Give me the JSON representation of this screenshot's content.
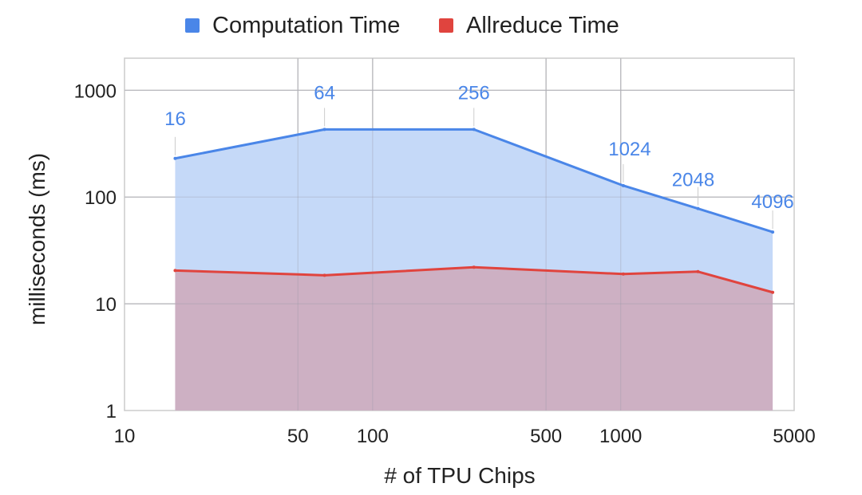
{
  "chart_data": {
    "type": "area",
    "xlabel": "# of TPU Chips",
    "ylabel": "milliseconds (ms)",
    "x_scale": "log",
    "y_scale": "log",
    "xlim": [
      10,
      5000
    ],
    "ylim": [
      1,
      2000
    ],
    "x_ticks": [
      10,
      50,
      100,
      500,
      1000,
      5000
    ],
    "x_tick_labels": [
      "10",
      "50",
      "100",
      "500",
      "1000",
      "5000"
    ],
    "y_ticks": [
      1,
      10,
      100,
      1000
    ],
    "y_tick_labels": [
      "1",
      "10",
      "100",
      "1000"
    ],
    "grid": true,
    "legend_position": "top",
    "x": [
      16,
      64,
      256,
      1024,
      2048,
      4096
    ],
    "point_labels": [
      "16",
      "64",
      "256",
      "1024",
      "2048",
      "4096"
    ],
    "series": [
      {
        "name": "Computation Time",
        "color": "#4a86e8",
        "fill": "#c5d9f8",
        "values": [
          230,
          430,
          430,
          128,
          78,
          47
        ]
      },
      {
        "name": "Allreduce Time",
        "color": "#e0443e",
        "fill": "#cdadbe",
        "values": [
          20.5,
          18.5,
          22,
          19,
          20,
          12.8
        ]
      }
    ]
  }
}
